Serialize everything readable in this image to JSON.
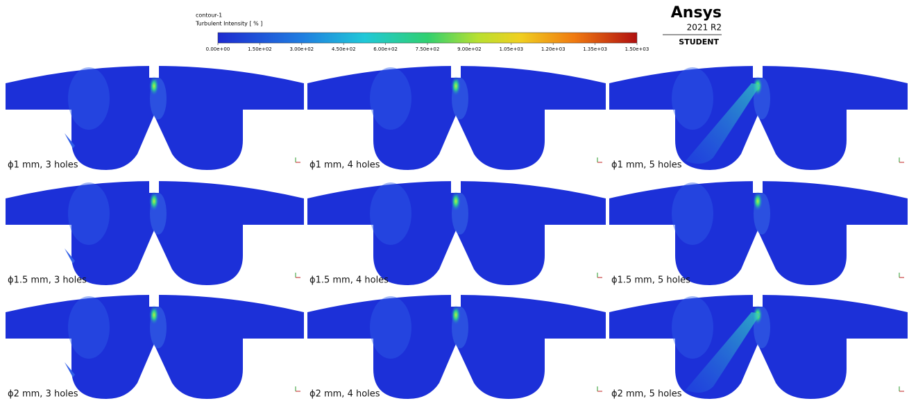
{
  "colorbar": {
    "title": "contour-1",
    "subtitle": "Turbulent Intensity [ % ]",
    "range": [
      0,
      1500
    ],
    "ticks": [
      {
        "value": 0,
        "label": "0.00e+00"
      },
      {
        "value": 150,
        "label": "1.50e+02"
      },
      {
        "value": 300,
        "label": "3.00e+02"
      },
      {
        "value": 450,
        "label": "4.50e+02"
      },
      {
        "value": 600,
        "label": "6.00e+02"
      },
      {
        "value": 750,
        "label": "7.50e+02"
      },
      {
        "value": 900,
        "label": "9.00e+02"
      },
      {
        "value": 1050,
        "label": "1.05e+03"
      },
      {
        "value": 1200,
        "label": "1.20e+03"
      },
      {
        "value": 1350,
        "label": "1.35e+03"
      },
      {
        "value": 1500,
        "label": "1.50e+03"
      }
    ]
  },
  "logo": {
    "brand": "Ansys",
    "version": "2021 R2",
    "edition": "STUDENT"
  },
  "panels": [
    {
      "label": "ϕ1 mm, 3 holes"
    },
    {
      "label": "ϕ1 mm, 4 holes"
    },
    {
      "label": "ϕ1 mm, 5 holes"
    },
    {
      "label": "ϕ1.5 mm, 3 holes"
    },
    {
      "label": "ϕ1.5 mm, 4 holes"
    },
    {
      "label": "ϕ1.5 mm, 5 holes"
    },
    {
      "label": "ϕ2 mm, 3 holes"
    },
    {
      "label": "ϕ2 mm, 4 holes"
    },
    {
      "label": "ϕ2 mm, 5 holes"
    }
  ]
}
